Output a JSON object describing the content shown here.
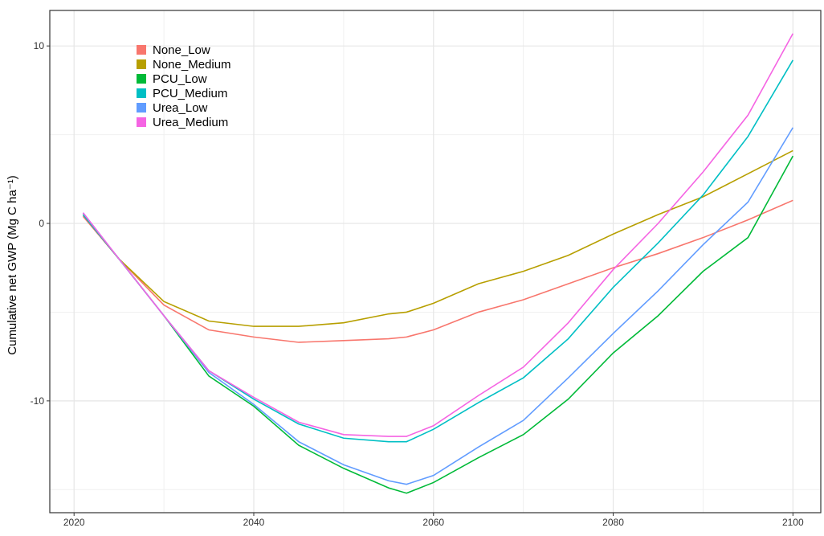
{
  "chart_data": {
    "type": "line",
    "y_label": "Cumulative net GWP (Mg C ha⁻¹)",
    "x": [
      2021,
      2025,
      2030,
      2035,
      2040,
      2045,
      2050,
      2055,
      2057,
      2060,
      2065,
      2070,
      2075,
      2080,
      2085,
      2090,
      2095,
      2100
    ],
    "series": [
      {
        "name": "None_Low",
        "color": "#F8766D",
        "values": [
          0.4,
          -2.0,
          -4.6,
          -6.0,
          -6.4,
          -6.7,
          -6.6,
          -6.5,
          -6.4,
          -6.0,
          -5.0,
          -4.3,
          -3.4,
          -2.5,
          -1.7,
          -0.8,
          0.2,
          1.3
        ]
      },
      {
        "name": "None_Medium",
        "color": "#B79F00",
        "values": [
          0.5,
          -2.0,
          -4.4,
          -5.5,
          -5.8,
          -5.8,
          -5.6,
          -5.1,
          -5.0,
          -4.5,
          -3.4,
          -2.7,
          -1.8,
          -0.6,
          0.5,
          1.5,
          2.8,
          4.1
        ]
      },
      {
        "name": "PCU_Low",
        "color": "#00BA38",
        "values": [
          0.5,
          -2.0,
          -5.2,
          -8.6,
          -10.3,
          -12.5,
          -13.8,
          -14.9,
          -15.2,
          -14.6,
          -13.2,
          -11.9,
          -9.9,
          -7.3,
          -5.2,
          -2.7,
          -0.8,
          3.8
        ]
      },
      {
        "name": "PCU_Medium",
        "color": "#00BFC4",
        "values": [
          0.5,
          -2.0,
          -5.2,
          -8.3,
          -9.9,
          -11.3,
          -12.1,
          -12.3,
          -12.3,
          -11.6,
          -10.1,
          -8.7,
          -6.5,
          -3.6,
          -1.1,
          1.6,
          4.9,
          9.2
        ]
      },
      {
        "name": "Urea_Low",
        "color": "#619CFF",
        "values": [
          0.6,
          -2.0,
          -5.2,
          -8.4,
          -10.2,
          -12.3,
          -13.6,
          -14.5,
          -14.7,
          -14.2,
          -12.6,
          -11.1,
          -8.7,
          -6.2,
          -3.8,
          -1.2,
          1.2,
          5.4
        ]
      },
      {
        "name": "Urea_Medium",
        "color": "#F564E3",
        "values": [
          0.6,
          -2.0,
          -5.2,
          -8.3,
          -9.8,
          -11.2,
          -11.9,
          -12.0,
          -12.0,
          -11.4,
          -9.7,
          -8.1,
          -5.6,
          -2.6,
          0.0,
          2.9,
          6.1,
          10.7
        ]
      }
    ],
    "xlim": [
      2017.3,
      2103.1
    ],
    "ylim": [
      -16.3,
      12.0
    ],
    "xticks": [
      2020,
      2040,
      2060,
      2080,
      2100
    ],
    "yticks": [
      -10,
      0,
      10
    ],
    "x_minor_grid": [
      2030,
      2050,
      2070,
      2090
    ],
    "y_minor_grid": [
      -15,
      -5,
      5
    ],
    "grid": true,
    "legend": "top-left"
  }
}
